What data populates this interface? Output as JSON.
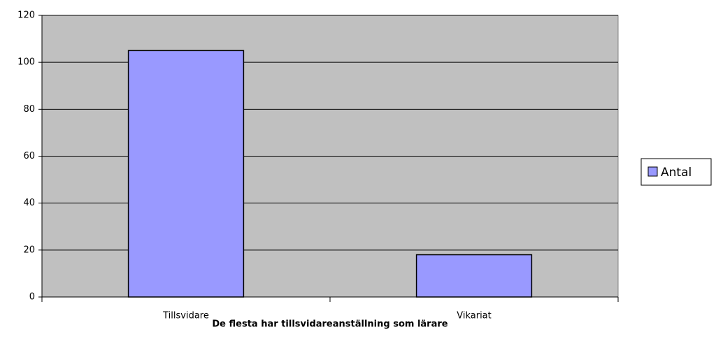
{
  "chart_data": {
    "type": "bar",
    "title": "De flesta har tillsvidareanställning som lärare",
    "categories": [
      "Tillsvidare",
      "Vikariat"
    ],
    "series": [
      {
        "name": "Antal",
        "color": "#9999ff",
        "values": [
          105,
          18
        ]
      }
    ],
    "ylim": [
      0,
      120
    ],
    "yticks": [
      0,
      20,
      40,
      60,
      80,
      100,
      120
    ],
    "grid": true,
    "legend": "right"
  }
}
